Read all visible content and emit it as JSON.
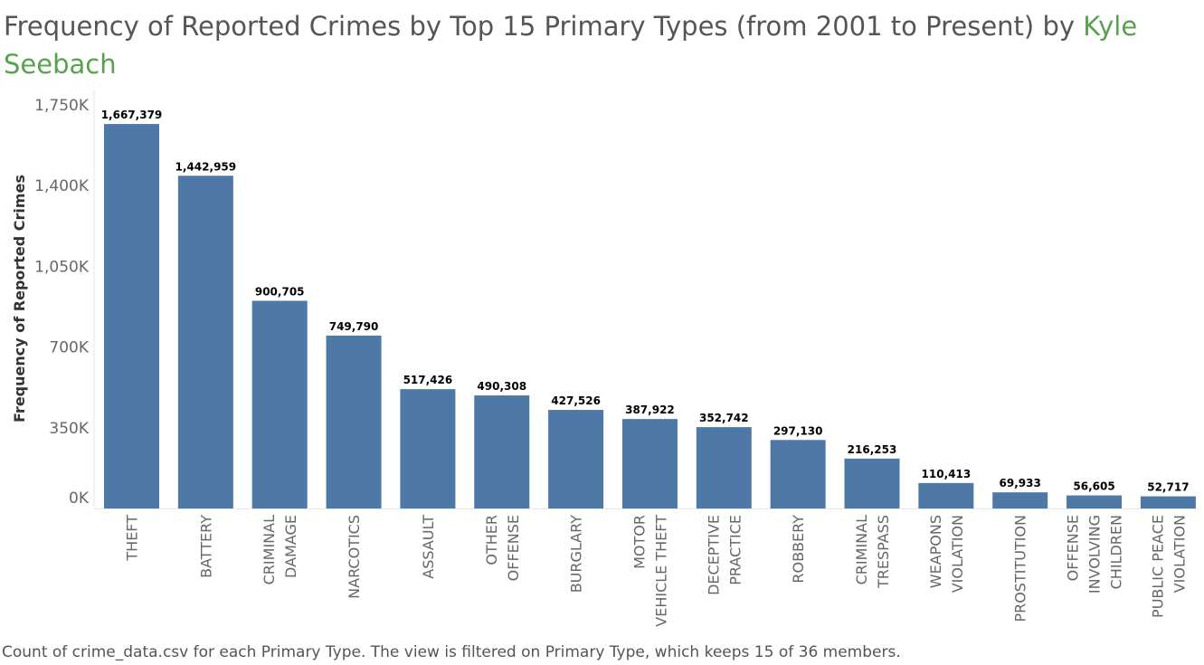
{
  "chart_data": {
    "type": "bar",
    "title": "Frequency of Reported Crimes by Top 15 Primary Types (from 2001 to Present) by",
    "title_author": "Kyle Seebach",
    "ylabel": "Frequency of Reported Crimes",
    "xlabel": "",
    "ylim": [
      0,
      1750000
    ],
    "yticks": [
      0,
      350000,
      700000,
      1050000,
      1400000,
      1750000
    ],
    "ytick_labels": [
      "0K",
      "350K",
      "700K",
      "1,050K",
      "1,400K",
      "1,750K"
    ],
    "categories": [
      [
        "THEFT"
      ],
      [
        "BATTERY"
      ],
      [
        "CRIMINAL",
        "DAMAGE"
      ],
      [
        "NARCOTICS"
      ],
      [
        "ASSAULT"
      ],
      [
        "OTHER",
        "OFFENSE"
      ],
      [
        "BURGLARY"
      ],
      [
        "MOTOR",
        "VEHICLE THEFT"
      ],
      [
        "DECEPTIVE",
        "PRACTICE"
      ],
      [
        "ROBBERY"
      ],
      [
        "CRIMINAL",
        "TRESPASS"
      ],
      [
        "WEAPONS",
        "VIOLATION"
      ],
      [
        "PROSTITUTION"
      ],
      [
        "OFFENSE",
        "INVOLVING",
        "CHILDREN"
      ],
      [
        "PUBLIC PEACE",
        "VIOLATION"
      ]
    ],
    "values": [
      1667379,
      1442959,
      900705,
      749790,
      517426,
      490308,
      427526,
      387922,
      352742,
      297130,
      216253,
      110413,
      69933,
      56605,
      52717
    ],
    "value_labels": [
      "1,667,379",
      "1,442,959",
      "900,705",
      "749,790",
      "517,426",
      "490,308",
      "427,526",
      "387,922",
      "352,742",
      "297,130",
      "216,253",
      "110,413",
      "69,933",
      "56,605",
      "52,717"
    ],
    "bar_color": "#4e79a7",
    "grid": false,
    "legend": "none"
  },
  "footnote": "Count of crime_data.csv for each Primary Type. The view is filtered on Primary Type, which keeps 15 of 36 members."
}
